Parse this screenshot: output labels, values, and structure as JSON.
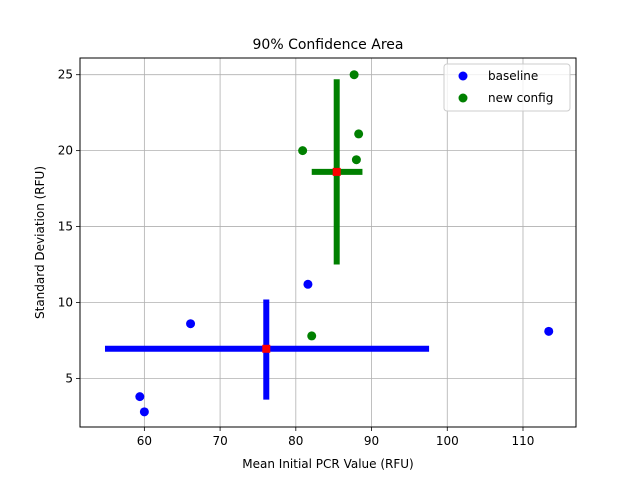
{
  "chart_data": {
    "type": "scatter",
    "title": "90% Confidence Area",
    "xlabel": "Mean Initial PCR Value (RFU)",
    "ylabel": "Standard Deviation (RFU)",
    "xlim": [
      51.5,
      117.0
    ],
    "ylim": [
      1.8,
      26.1
    ],
    "xticks": [
      60,
      70,
      80,
      90,
      100,
      110
    ],
    "yticks": [
      5,
      10,
      15,
      20,
      25
    ],
    "grid": true,
    "legend_position": "top-right",
    "series": [
      {
        "name": "baseline",
        "color": "#0000ff",
        "points": [
          [
            59.4,
            3.8
          ],
          [
            60.0,
            2.8
          ],
          [
            66.1,
            8.6
          ],
          [
            81.6,
            11.2
          ],
          [
            113.4,
            8.1
          ]
        ],
        "center": [
          76.1,
          6.95
        ],
        "x_interval": [
          54.8,
          97.6
        ],
        "y_interval": [
          3.6,
          10.2
        ]
      },
      {
        "name": "new config",
        "color": "#008000",
        "points": [
          [
            80.9,
            20.0
          ],
          [
            82.1,
            7.8
          ],
          [
            87.7,
            25.0
          ],
          [
            88.0,
            19.4
          ],
          [
            88.3,
            21.1
          ]
        ],
        "center": [
          85.4,
          18.6
        ],
        "x_interval": [
          82.1,
          88.8
        ],
        "y_interval": [
          12.5,
          24.7
        ]
      }
    ],
    "center_marker_color": "#ff0000"
  }
}
